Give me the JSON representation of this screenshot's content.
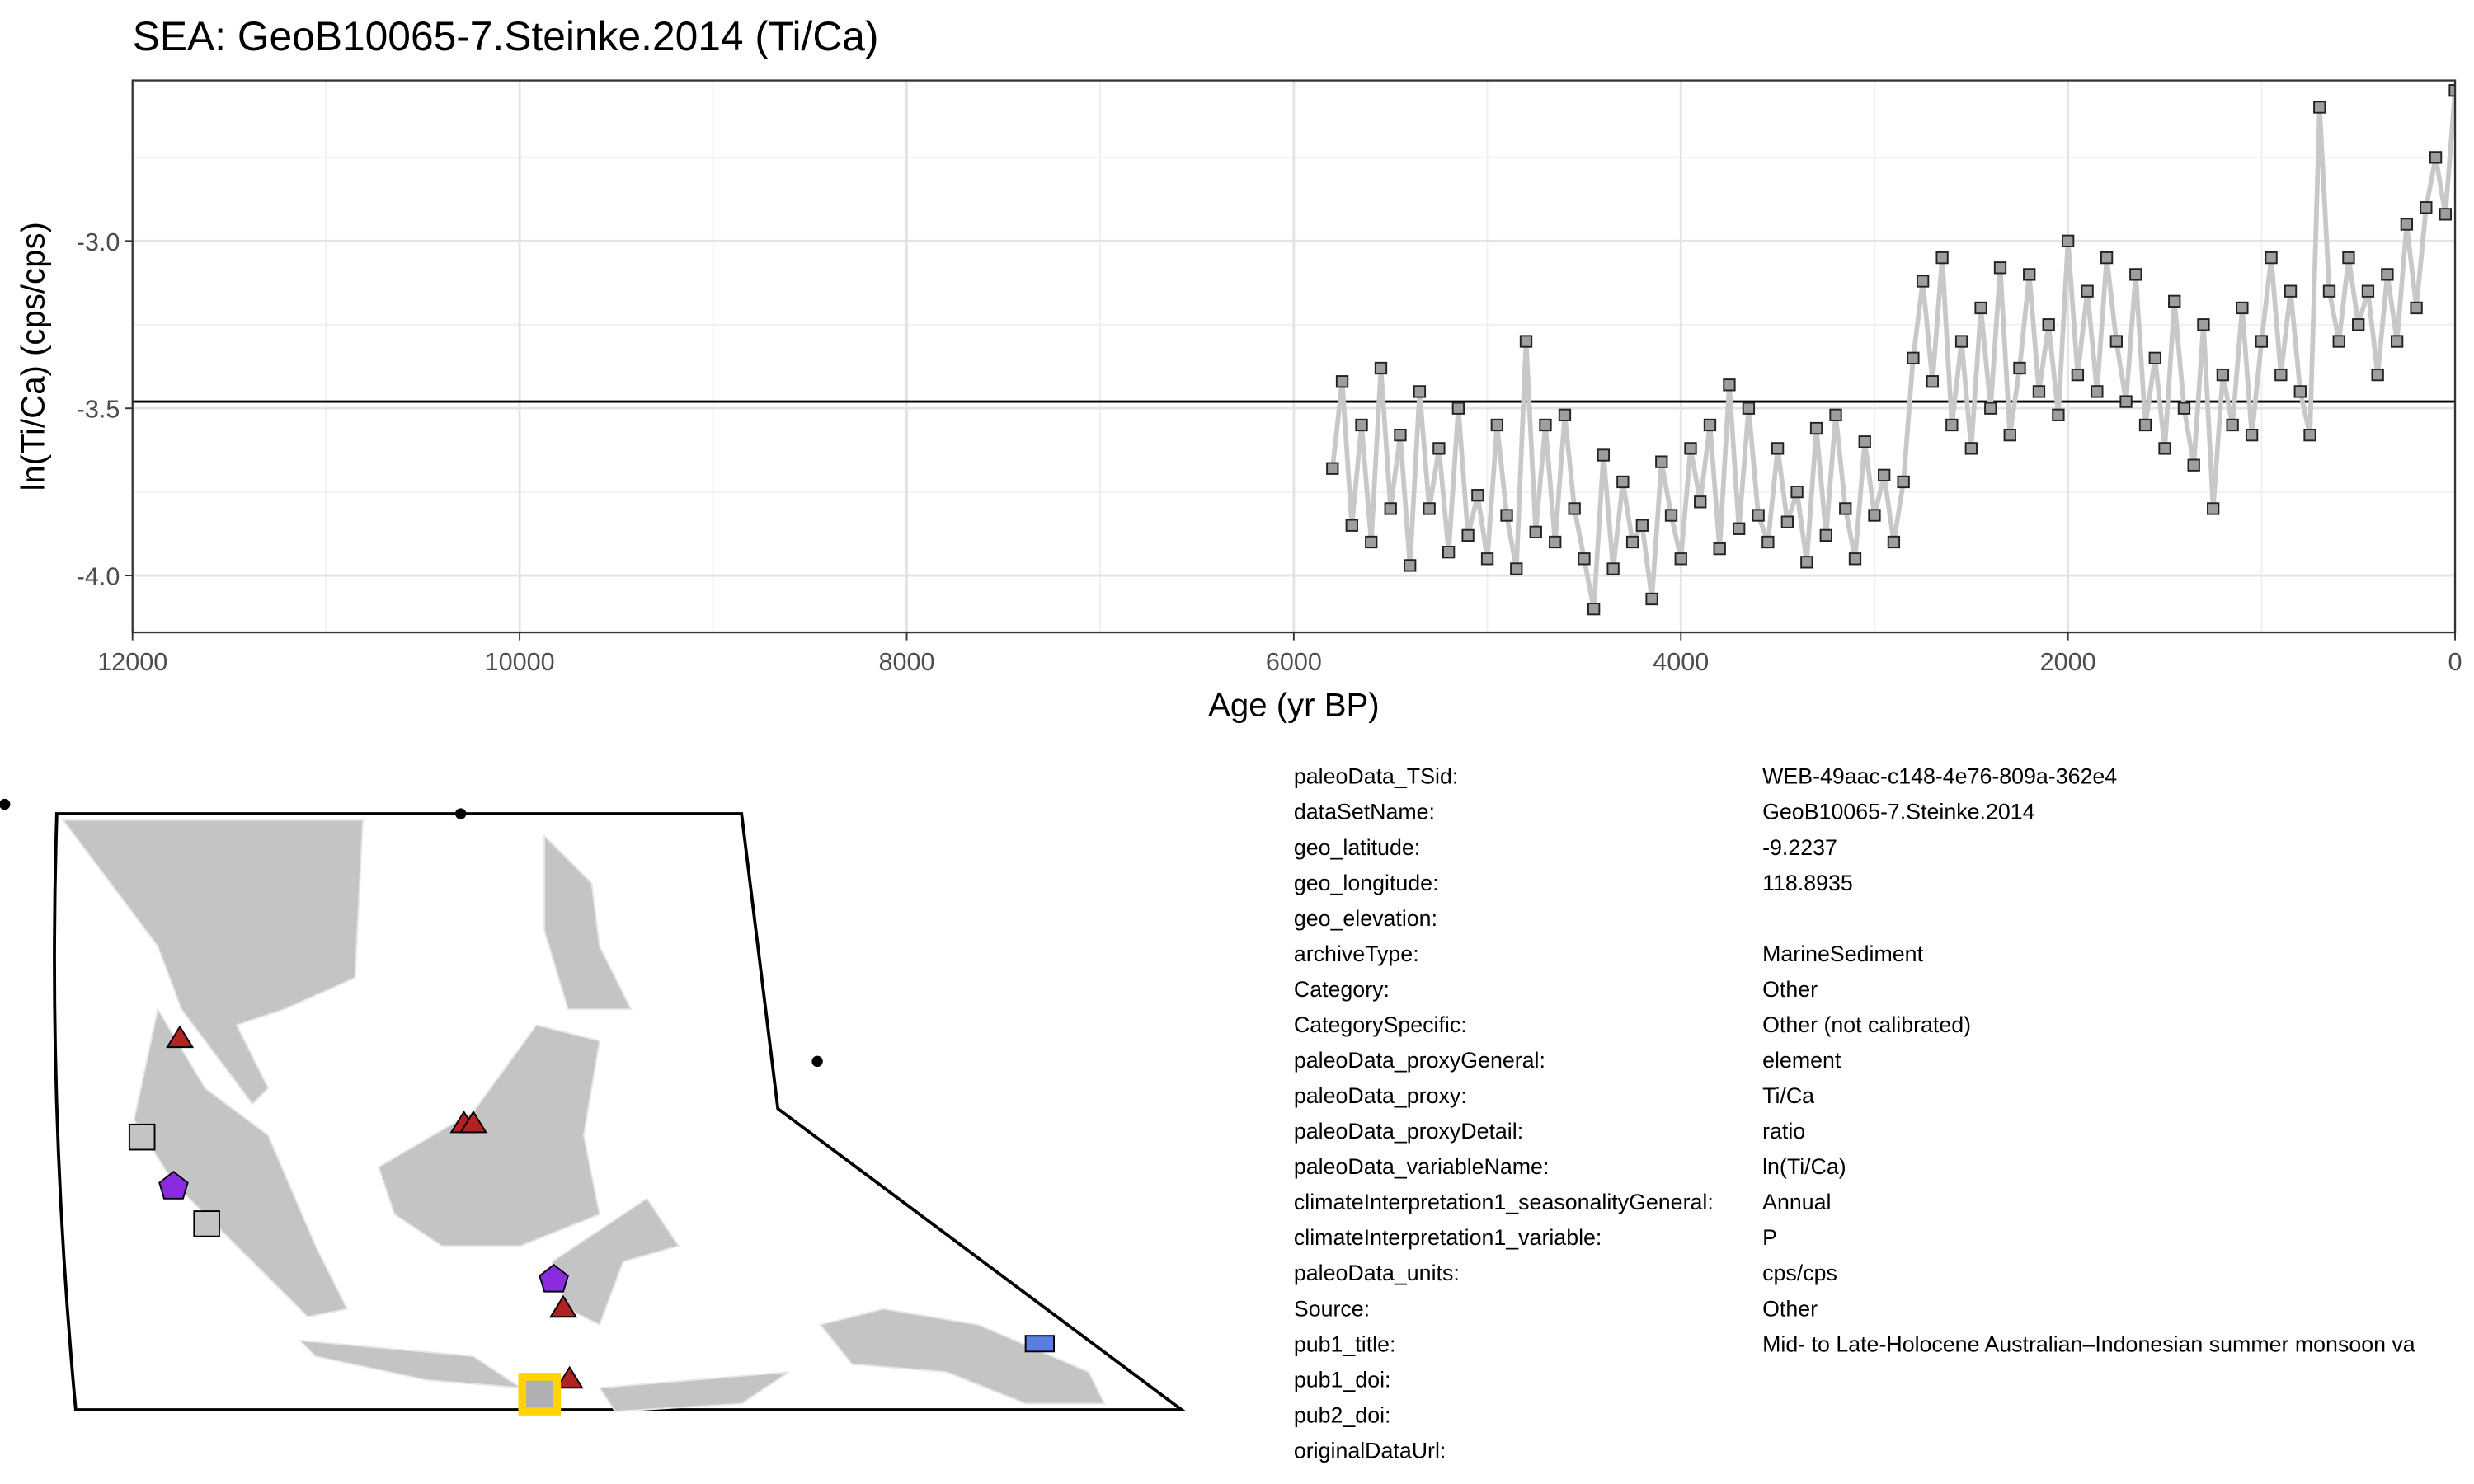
{
  "chart_data": {
    "type": "line",
    "title": "SEA: GeoB10065-7.Steinke.2014 (Ti/Ca)",
    "x_label": "Age (yr BP)",
    "y_label": "ln(Ti/Ca) (cps/cps)",
    "xlim": [
      12000,
      0
    ],
    "ylim": [
      -4.17,
      -2.52
    ],
    "xticks": [
      12000,
      10000,
      8000,
      6000,
      4000,
      2000,
      0
    ],
    "x_minor_ticks": [
      11000,
      9000,
      7000,
      5000,
      3000,
      1000
    ],
    "yticks": [
      {
        "value": -3,
        "label": "-3.0"
      },
      {
        "value": -3.5,
        "label": "-3.5"
      },
      {
        "value": -4,
        "label": "-4.0"
      }
    ],
    "y_minor_ticks": [
      -2.75,
      -3.25,
      -3.75
    ],
    "grid": true,
    "reference_line": -3.48,
    "line_color": "#c8c8c8",
    "marker_color": "#9e9e9e",
    "x": [
      5800,
      5750,
      5700,
      5650,
      5600,
      5550,
      5500,
      5450,
      5400,
      5350,
      5300,
      5250,
      5200,
      5150,
      5100,
      5050,
      5000,
      4950,
      4900,
      4850,
      4800,
      4750,
      4700,
      4650,
      4600,
      4550,
      4500,
      4450,
      4400,
      4350,
      4300,
      4250,
      4200,
      4150,
      4100,
      4050,
      4000,
      3950,
      3900,
      3850,
      3800,
      3750,
      3700,
      3650,
      3600,
      3550,
      3500,
      3450,
      3400,
      3350,
      3300,
      3250,
      3200,
      3150,
      3100,
      3050,
      3000,
      2950,
      2900,
      2850,
      2800,
      2750,
      2700,
      2650,
      2600,
      2550,
      2500,
      2450,
      2400,
      2350,
      2300,
      2250,
      2200,
      2150,
      2100,
      2050,
      2000,
      1950,
      1900,
      1850,
      1800,
      1750,
      1700,
      1650,
      1600,
      1550,
      1500,
      1450,
      1400,
      1350,
      1300,
      1250,
      1200,
      1150,
      1100,
      1050,
      1000,
      950,
      900,
      850,
      800,
      750,
      700,
      650,
      600,
      550,
      500,
      450,
      400,
      350,
      300,
      250,
      200,
      150,
      100,
      50,
      0
    ],
    "values": [
      -3.68,
      -3.42,
      -3.85,
      -3.55,
      -3.9,
      -3.38,
      -3.8,
      -3.58,
      -3.97,
      -3.45,
      -3.8,
      -3.62,
      -3.93,
      -3.5,
      -3.88,
      -3.76,
      -3.95,
      -3.55,
      -3.82,
      -3.98,
      -3.3,
      -3.87,
      -3.55,
      -3.9,
      -3.52,
      -3.8,
      -3.95,
      -4.1,
      -3.64,
      -3.98,
      -3.72,
      -3.9,
      -3.85,
      -4.07,
      -3.66,
      -3.82,
      -3.95,
      -3.62,
      -3.78,
      -3.55,
      -3.92,
      -3.43,
      -3.86,
      -3.5,
      -3.82,
      -3.9,
      -3.62,
      -3.84,
      -3.75,
      -3.96,
      -3.56,
      -3.88,
      -3.52,
      -3.8,
      -3.95,
      -3.6,
      -3.82,
      -3.7,
      -3.9,
      -3.72,
      -3.35,
      -3.12,
      -3.42,
      -3.05,
      -3.55,
      -3.3,
      -3.62,
      -3.2,
      -3.5,
      -3.08,
      -3.58,
      -3.38,
      -3.1,
      -3.45,
      -3.25,
      -3.52,
      -3.0,
      -3.4,
      -3.15,
      -3.45,
      -3.05,
      -3.3,
      -3.48,
      -3.1,
      -3.55,
      -3.35,
      -3.62,
      -3.18,
      -3.5,
      -3.67,
      -3.25,
      -3.8,
      -3.4,
      -3.55,
      -3.2,
      -3.58,
      -3.3,
      -3.05,
      -3.4,
      -3.15,
      -3.45,
      -3.58,
      -2.6,
      -3.15,
      -3.3,
      -3.05,
      -3.25,
      -3.15,
      -3.4,
      -3.1,
      -3.3,
      -2.95,
      -3.2,
      -2.9,
      -2.75,
      -2.92,
      -2.55
    ]
  },
  "metadata": {
    "rows": [
      {
        "key": "paleoData_TSid:",
        "value": "WEB-49aac-c148-4e76-809a-362e4"
      },
      {
        "key": "dataSetName:",
        "value": "GeoB10065-7.Steinke.2014"
      },
      {
        "key": "geo_latitude:",
        "value": "-9.2237"
      },
      {
        "key": "geo_longitude:",
        "value": "118.8935"
      },
      {
        "key": "geo_elevation:"
      },
      {
        "key": "archiveType:",
        "value": "MarineSediment"
      },
      {
        "key": "Category:",
        "value": "Other"
      },
      {
        "key": "CategorySpecific:",
        "value": "Other (not calibrated)"
      },
      {
        "key": "paleoData_proxyGeneral:",
        "value": "element"
      },
      {
        "key": "paleoData_proxy:",
        "value": "Ti/Ca"
      },
      {
        "key": "paleoData_proxyDetail:",
        "value": "ratio"
      },
      {
        "key": "paleoData_variableName:",
        "value": "ln(Ti/Ca)"
      },
      {
        "key": "climateInterpretation1_seasonalityGeneral:",
        "value": "Annual"
      },
      {
        "key": "climateInterpretation1_variable:",
        "value": "P"
      },
      {
        "key": "paleoData_units:",
        "value": "cps/cps"
      },
      {
        "key": "Source:",
        "value": "Other"
      },
      {
        "key": "pub1_title:",
        "value": "Mid- to Late-Holocene Australian–Indonesian summer monsoon va"
      },
      {
        "key": "pub1_doi:"
      },
      {
        "key": "pub2_doi:"
      },
      {
        "key": "originalDataUrl:"
      }
    ]
  }
}
